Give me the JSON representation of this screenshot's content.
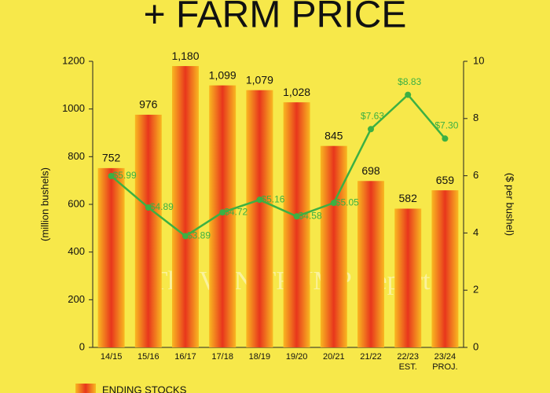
{
  "chart_data": {
    "type": "bar",
    "title": "+ FARM PRICE",
    "categories": [
      "14/15",
      "15/16",
      "16/17",
      "17/18",
      "18/19",
      "19/20",
      "20/21",
      "21/22",
      "22/23\nEST.",
      "23/24\nPROJ."
    ],
    "series": [
      {
        "name": "ENDING STOCKS",
        "type": "bar",
        "color": "#e8361c",
        "values": [
          752,
          976,
          1180,
          1099,
          1079,
          1028,
          845,
          698,
          582,
          659
        ],
        "value_labels": [
          "752",
          "976",
          "1,180",
          "1,099",
          "1,079",
          "1,028",
          "845",
          "698",
          "582",
          "659"
        ]
      },
      {
        "type": "line",
        "axis": "y2",
        "color": "#3cb043",
        "values": [
          5.99,
          4.89,
          3.89,
          4.72,
          5.16,
          4.58,
          5.05,
          7.63,
          8.83,
          7.3
        ],
        "value_labels": [
          "$5.99",
          "$4.89",
          "$3.89",
          "$4.72",
          "$5.16",
          "$4.58",
          "$5.05",
          "$7.63",
          "$8.83",
          "$7.30"
        ]
      }
    ],
    "ylabel": "(million bushels)",
    "y2label": "($ per bushel)",
    "ylim": [
      0,
      1200
    ],
    "yticks": [
      0,
      200,
      400,
      600,
      800,
      1000,
      1200
    ],
    "y2lim": [
      0,
      10
    ],
    "y2ticks": [
      0,
      2,
      4,
      6,
      8,
      10
    ],
    "watermark": "The VAN TRUMP Report",
    "legend": "bottom-left"
  }
}
